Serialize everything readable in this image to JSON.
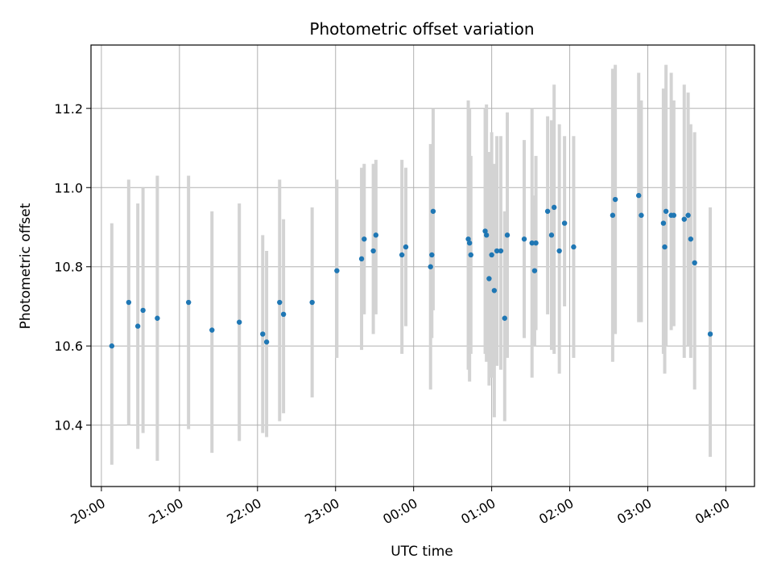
{
  "chart_data": {
    "type": "scatter",
    "title": "Photometric offset variation",
    "xlabel": "UTC time",
    "ylabel": "Photometric offset",
    "xlim": [
      "19:52",
      "04:22"
    ],
    "ylim": [
      10.245,
      11.36
    ],
    "yticks": [
      10.4,
      10.6,
      10.8,
      11.0,
      11.2
    ],
    "xticks": [
      "20:00",
      "21:00",
      "22:00",
      "23:00",
      "00:00",
      "01:00",
      "02:00",
      "03:00",
      "04:00"
    ],
    "grid": true,
    "colors": {
      "marker": "#1f77b4",
      "errorbar": "#d3d3d3",
      "grid": "#b0b0b0"
    },
    "series": [
      {
        "x": [
          "20:08",
          "20:21",
          "20:28",
          "20:32",
          "20:43",
          "21:07",
          "21:25",
          "21:46",
          "22:04",
          "22:07",
          "22:17",
          "22:20",
          "22:42",
          "23:01",
          "23:20",
          "23:22",
          "23:29",
          "23:31",
          "23:51",
          "23:54",
          "00:13",
          "00:14",
          "00:15",
          "00:42",
          "00:43",
          "00:44",
          "00:55",
          "00:56",
          "00:58",
          "01:00",
          "01:02",
          "01:04",
          "01:07",
          "01:10",
          "01:12",
          "01:25",
          "01:31",
          "01:33",
          "01:34",
          "01:43",
          "01:46",
          "01:48",
          "01:52",
          "01:56",
          "02:03",
          "02:33",
          "02:35",
          "02:53",
          "02:55",
          "03:12",
          "03:13",
          "03:14",
          "03:18",
          "03:20",
          "03:28",
          "03:31",
          "03:33",
          "03:36",
          "03:48"
        ],
        "y": [
          10.6,
          10.71,
          10.65,
          10.69,
          10.67,
          10.71,
          10.64,
          10.66,
          10.63,
          10.61,
          10.71,
          10.68,
          10.71,
          10.79,
          10.82,
          10.87,
          10.84,
          10.88,
          10.83,
          10.85,
          10.8,
          10.83,
          10.94,
          10.87,
          10.86,
          10.83,
          10.89,
          10.88,
          10.77,
          10.83,
          10.74,
          10.84,
          10.84,
          10.67,
          10.88,
          10.87,
          10.86,
          10.79,
          10.86,
          10.94,
          10.88,
          10.95,
          10.84,
          10.91,
          10.85,
          10.93,
          10.97,
          10.98,
          10.93,
          10.91,
          10.85,
          10.94,
          10.93,
          10.93,
          10.92,
          10.93,
          10.87,
          10.81,
          10.63
        ],
        "err_low": [
          10.3,
          10.4,
          10.34,
          10.38,
          10.31,
          10.39,
          10.33,
          10.36,
          10.38,
          10.37,
          10.41,
          10.43,
          10.47,
          10.57,
          10.59,
          10.68,
          10.63,
          10.68,
          10.58,
          10.65,
          10.49,
          10.62,
          10.69,
          10.54,
          10.51,
          10.58,
          10.58,
          10.56,
          10.5,
          10.52,
          10.42,
          10.55,
          10.54,
          10.41,
          10.57,
          10.62,
          10.52,
          10.6,
          10.64,
          10.68,
          10.59,
          10.58,
          10.53,
          10.7,
          10.57,
          10.56,
          10.63,
          10.66,
          10.66,
          10.58,
          10.53,
          10.6,
          10.64,
          10.65,
          10.57,
          10.6,
          10.57,
          10.49,
          10.32
        ],
        "err_high": [
          10.91,
          11.02,
          10.96,
          11.0,
          11.03,
          11.03,
          10.94,
          10.96,
          10.88,
          10.84,
          11.02,
          10.92,
          10.95,
          11.02,
          11.05,
          11.06,
          11.06,
          11.07,
          11.07,
          11.05,
          11.11,
          11.04,
          11.2,
          11.22,
          11.2,
          11.08,
          11.2,
          11.21,
          11.09,
          11.14,
          11.06,
          11.13,
          11.13,
          10.94,
          11.19,
          11.12,
          11.2,
          10.98,
          11.08,
          11.18,
          11.17,
          11.26,
          11.16,
          11.13,
          11.13,
          11.3,
          11.31,
          11.29,
          11.22,
          11.25,
          11.17,
          11.31,
          11.29,
          11.22,
          11.26,
          11.24,
          11.16,
          11.14,
          10.95
        ]
      }
    ]
  }
}
